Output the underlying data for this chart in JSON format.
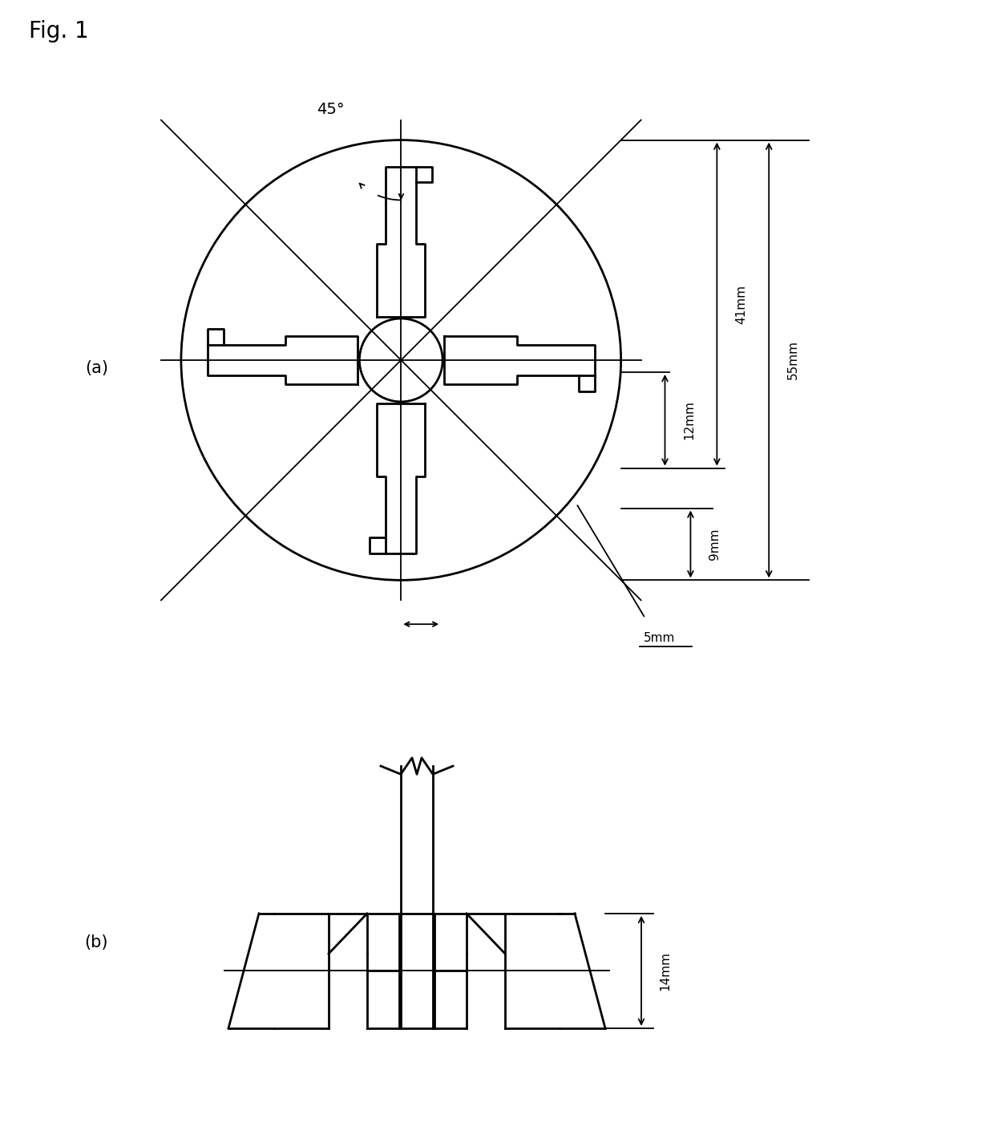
{
  "fig_label": "Fig. 1",
  "label_a": "(a)",
  "label_b": "(b)",
  "bg_color": "#ffffff",
  "line_color": "#000000",
  "dim_55mm": "55mm",
  "dim_41mm": "41mm",
  "dim_12mm": "12mm",
  "dim_9mm": "9mm",
  "dim_5mm": "5mm",
  "dim_14mm": "14mm",
  "angle_label": "45°"
}
